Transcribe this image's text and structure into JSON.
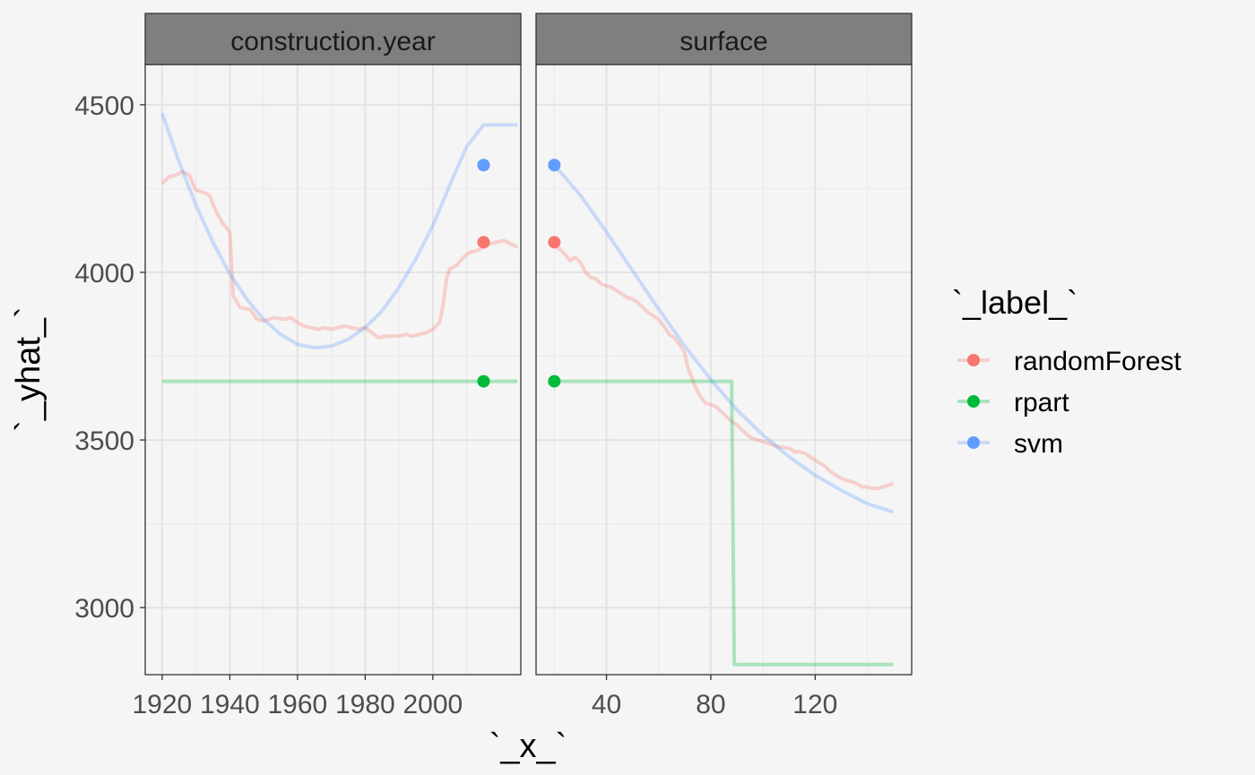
{
  "chart_data": {
    "type": "line",
    "xlabel": "`_x_`",
    "ylabel": "`_yhat_`",
    "ylim": [
      2800,
      4620
    ],
    "y_ticks": [
      3000,
      3500,
      4000,
      4500
    ],
    "grid": true,
    "legend": {
      "title": "`_label_`",
      "position": "right",
      "entries": [
        {
          "name": "randomForest",
          "color": "#F8766D"
        },
        {
          "name": "rpart",
          "color": "#00BA38"
        },
        {
          "name": "svm",
          "color": "#619CFF"
        }
      ]
    },
    "panels": [
      {
        "title": "construction.year",
        "xlim": [
          1915,
          2026
        ],
        "x_ticks": [
          1920,
          1940,
          1960,
          1980,
          2000
        ],
        "series": [
          {
            "name": "randomForest",
            "points": [
              [
                1920,
                4265
              ],
              [
                1922,
                4285
              ],
              [
                1924,
                4290
              ],
              [
                1926,
                4300
              ],
              [
                1928,
                4290
              ],
              [
                1930,
                4245
              ],
              [
                1932,
                4240
              ],
              [
                1934,
                4230
              ],
              [
                1936,
                4180
              ],
              [
                1938,
                4145
              ],
              [
                1940,
                4120
              ],
              [
                1941,
                3930
              ],
              [
                1943,
                3895
              ],
              [
                1946,
                3890
              ],
              [
                1948,
                3860
              ],
              [
                1950,
                3855
              ],
              [
                1953,
                3865
              ],
              [
                1956,
                3860
              ],
              [
                1958,
                3865
              ],
              [
                1960,
                3850
              ],
              [
                1962,
                3840
              ],
              [
                1964,
                3835
              ],
              [
                1966,
                3830
              ],
              [
                1968,
                3835
              ],
              [
                1970,
                3830
              ],
              [
                1972,
                3835
              ],
              [
                1974,
                3840
              ],
              [
                1976,
                3835
              ],
              [
                1978,
                3830
              ],
              [
                1980,
                3835
              ],
              [
                1982,
                3820
              ],
              [
                1984,
                3805
              ],
              [
                1986,
                3810
              ],
              [
                1988,
                3810
              ],
              [
                1990,
                3810
              ],
              [
                1992,
                3815
              ],
              [
                1994,
                3810
              ],
              [
                1996,
                3815
              ],
              [
                1998,
                3820
              ],
              [
                2000,
                3830
              ],
              [
                2002,
                3850
              ],
              [
                2003,
                3900
              ],
              [
                2004,
                3980
              ],
              [
                2005,
                4010
              ],
              [
                2007,
                4020
              ],
              [
                2009,
                4045
              ],
              [
                2011,
                4060
              ],
              [
                2013,
                4065
              ],
              [
                2015,
                4075
              ],
              [
                2017,
                4085
              ],
              [
                2019,
                4090
              ],
              [
                2021,
                4095
              ],
              [
                2023,
                4085
              ],
              [
                2025,
                4075
              ]
            ]
          },
          {
            "name": "rpart",
            "points": [
              [
                1920,
                3675
              ],
              [
                2025,
                3675
              ]
            ]
          },
          {
            "name": "svm",
            "points": [
              [
                1920,
                4475
              ],
              [
                1925,
                4330
              ],
              [
                1930,
                4200
              ],
              [
                1935,
                4090
              ],
              [
                1940,
                3995
              ],
              [
                1945,
                3920
              ],
              [
                1950,
                3860
              ],
              [
                1955,
                3815
              ],
              [
                1960,
                3785
              ],
              [
                1965,
                3775
              ],
              [
                1970,
                3780
              ],
              [
                1975,
                3800
              ],
              [
                1980,
                3835
              ],
              [
                1985,
                3885
              ],
              [
                1990,
                3955
              ],
              [
                1995,
                4040
              ],
              [
                2000,
                4140
              ],
              [
                2005,
                4260
              ],
              [
                2010,
                4375
              ],
              [
                2015,
                4440
              ],
              [
                2025,
                4440
              ]
            ]
          }
        ],
        "points": [
          {
            "name": "randomForest",
            "x": 2015,
            "y": 4090
          },
          {
            "name": "rpart",
            "x": 2015,
            "y": 3675
          },
          {
            "name": "svm",
            "x": 2015,
            "y": 4320
          }
        ]
      },
      {
        "title": "surface",
        "xlim": [
          13,
          157
        ],
        "x_ticks": [
          40,
          80,
          120
        ],
        "series": [
          {
            "name": "randomForest",
            "points": [
              [
                20,
                4080
              ],
              [
                22,
                4070
              ],
              [
                24,
                4055
              ],
              [
                26,
                4035
              ],
              [
                28,
                4045
              ],
              [
                30,
                4030
              ],
              [
                32,
                4000
              ],
              [
                34,
                3985
              ],
              [
                36,
                3980
              ],
              [
                38,
                3965
              ],
              [
                40,
                3960
              ],
              [
                42,
                3955
              ],
              [
                44,
                3945
              ],
              [
                46,
                3935
              ],
              [
                48,
                3925
              ],
              [
                50,
                3920
              ],
              [
                52,
                3910
              ],
              [
                54,
                3895
              ],
              [
                56,
                3880
              ],
              [
                58,
                3870
              ],
              [
                60,
                3860
              ],
              [
                62,
                3840
              ],
              [
                64,
                3815
              ],
              [
                66,
                3805
              ],
              [
                68,
                3785
              ],
              [
                70,
                3760
              ],
              [
                71,
                3720
              ],
              [
                72,
                3700
              ],
              [
                74,
                3660
              ],
              [
                76,
                3630
              ],
              [
                78,
                3610
              ],
              [
                80,
                3605
              ],
              [
                82,
                3600
              ],
              [
                84,
                3585
              ],
              [
                86,
                3570
              ],
              [
                88,
                3555
              ],
              [
                90,
                3545
              ],
              [
                92,
                3530
              ],
              [
                94,
                3515
              ],
              [
                96,
                3505
              ],
              [
                98,
                3500
              ],
              [
                100,
                3495
              ],
              [
                102,
                3490
              ],
              [
                104,
                3485
              ],
              [
                106,
                3480
              ],
              [
                108,
                3478
              ],
              [
                110,
                3475
              ],
              [
                112,
                3465
              ],
              [
                114,
                3465
              ],
              [
                116,
                3460
              ],
              [
                118,
                3450
              ],
              [
                120,
                3440
              ],
              [
                122,
                3430
              ],
              [
                124,
                3420
              ],
              [
                126,
                3405
              ],
              [
                128,
                3395
              ],
              [
                130,
                3385
              ],
              [
                132,
                3380
              ],
              [
                134,
                3375
              ],
              [
                136,
                3370
              ],
              [
                138,
                3360
              ],
              [
                140,
                3360
              ],
              [
                142,
                3355
              ],
              [
                144,
                3355
              ],
              [
                146,
                3360
              ],
              [
                148,
                3365
              ],
              [
                150,
                3370
              ]
            ]
          },
          {
            "name": "rpart",
            "points": [
              [
                20,
                3675
              ],
              [
                87,
                3675
              ],
              [
                88,
                3675
              ],
              [
                89,
                2830
              ],
              [
                150,
                2830
              ]
            ]
          },
          {
            "name": "svm",
            "points": [
              [
                20,
                4320
              ],
              [
                30,
                4230
              ],
              [
                40,
                4120
              ],
              [
                50,
                4005
              ],
              [
                60,
                3890
              ],
              [
                70,
                3780
              ],
              [
                80,
                3680
              ],
              [
                90,
                3590
              ],
              [
                100,
                3515
              ],
              [
                110,
                3450
              ],
              [
                120,
                3395
              ],
              [
                130,
                3350
              ],
              [
                140,
                3310
              ],
              [
                150,
                3285
              ]
            ]
          }
        ],
        "points": [
          {
            "name": "randomForest",
            "x": 20,
            "y": 4090
          },
          {
            "name": "rpart",
            "x": 20,
            "y": 3675
          },
          {
            "name": "svm",
            "x": 20,
            "y": 4320
          }
        ]
      }
    ]
  }
}
